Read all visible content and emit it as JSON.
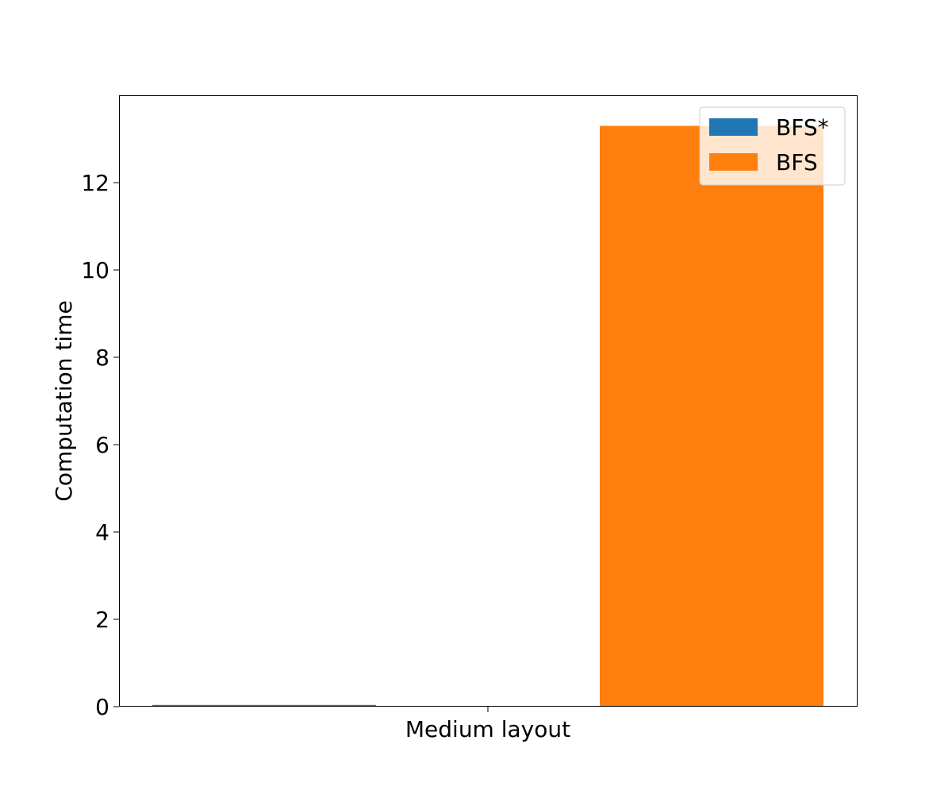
{
  "chart_data": {
    "type": "bar",
    "title": "",
    "xlabel": "",
    "ylabel": "Computation time",
    "categories": [
      "Medium layout"
    ],
    "series": [
      {
        "name": "BFS*",
        "values": [
          0.04
        ],
        "color": "#1f77b4"
      },
      {
        "name": "BFS",
        "values": [
          13.3
        ],
        "color": "#ff7f0e"
      }
    ],
    "ylim": [
      0,
      14
    ],
    "yticks": [
      0,
      2,
      4,
      6,
      8,
      10,
      12
    ],
    "grid": false,
    "legend_position": "top-right"
  }
}
